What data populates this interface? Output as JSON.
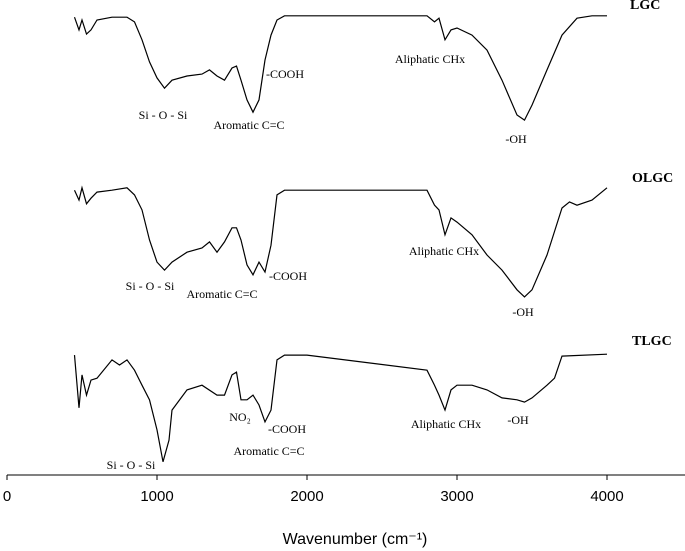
{
  "chart_data": {
    "type": "line",
    "x_label": "Wavenumber (cm⁻¹)",
    "xlim": [
      0,
      4500
    ],
    "xticks": [
      0,
      1000,
      2000,
      3000,
      4000
    ],
    "ylim": [
      0,
      100
    ],
    "series": [
      {
        "name": "LGC",
        "color": "#000000",
        "x": [
          450,
          480,
          500,
          530,
          560,
          600,
          700,
          800,
          850,
          900,
          950,
          1000,
          1050,
          1100,
          1200,
          1300,
          1350,
          1400,
          1450,
          1500,
          1530,
          1560,
          1600,
          1640,
          1680,
          1720,
          1760,
          1800,
          1850,
          2000,
          2800,
          2850,
          2880,
          2920,
          2960,
          3000,
          3100,
          3200,
          3300,
          3400,
          3450,
          3500,
          3600,
          3700,
          3800,
          3900,
          4000
        ],
        "values": [
          97.4,
          94.7,
          96.8,
          93.8,
          94.7,
          96.8,
          97.4,
          97.4,
          96.4,
          92.6,
          87.9,
          84.5,
          82.3,
          84.0,
          84.9,
          85.3,
          86.2,
          84.9,
          84.0,
          86.6,
          87.0,
          84.0,
          79.8,
          77.2,
          79.8,
          88.3,
          93.6,
          96.8,
          97.7,
          97.7,
          97.7,
          96.4,
          97.2,
          92.6,
          94.7,
          95.1,
          93.6,
          90.4,
          84.0,
          76.6,
          75.5,
          78.7,
          86.2,
          93.6,
          97.2,
          97.7,
          97.7
        ],
        "annotations": [
          "Si - O - Si",
          "Aromatic C=C",
          "-COOH",
          "Aliphatic CHx",
          "-OH"
        ]
      },
      {
        "name": "OLGC",
        "color": "#000000",
        "x": [
          450,
          480,
          500,
          530,
          560,
          600,
          700,
          800,
          850,
          900,
          950,
          1000,
          1050,
          1100,
          1200,
          1300,
          1350,
          1400,
          1450,
          1500,
          1530,
          1560,
          1600,
          1640,
          1680,
          1720,
          1760,
          1800,
          1850,
          2000,
          2800,
          2850,
          2880,
          2920,
          2960,
          3000,
          3100,
          3200,
          3300,
          3400,
          3450,
          3500,
          3600,
          3700,
          3750,
          3800,
          3900,
          4000
        ],
        "values": [
          60.6,
          58.5,
          61.1,
          57.7,
          58.9,
          60.2,
          60.6,
          61.1,
          59.6,
          56.4,
          50.0,
          45.3,
          43.6,
          45.3,
          47.4,
          48.3,
          49.6,
          47.4,
          49.6,
          52.6,
          52.6,
          50.0,
          44.7,
          42.6,
          45.3,
          43.2,
          48.9,
          59.6,
          60.6,
          60.6,
          60.6,
          57.4,
          56.4,
          51.1,
          54.7,
          53.8,
          51.1,
          46.8,
          43.6,
          39.4,
          37.9,
          39.4,
          46.8,
          56.8,
          58.1,
          57.4,
          58.5,
          61.1
        ],
        "annotations": [
          "Si - O - Si",
          "Aromatic C=C",
          "-COOH",
          "Aliphatic CHx",
          "-OH"
        ]
      },
      {
        "name": "TLGC",
        "color": "#000000",
        "x": [
          450,
          480,
          500,
          530,
          560,
          600,
          700,
          750,
          800,
          850,
          900,
          950,
          1000,
          1040,
          1080,
          1100,
          1200,
          1300,
          1400,
          1450,
          1500,
          1530,
          1560,
          1600,
          1640,
          1680,
          1720,
          1760,
          1800,
          1850,
          2000,
          2800,
          2850,
          2880,
          2920,
          2960,
          3000,
          3100,
          3200,
          3300,
          3400,
          3450,
          3500,
          3600,
          3650,
          3700,
          4000
        ],
        "values": [
          25.5,
          14.3,
          21.3,
          17.0,
          20.2,
          20.6,
          24.5,
          23.4,
          24.5,
          22.3,
          19.1,
          16.0,
          9.6,
          2.8,
          7.4,
          13.8,
          18.1,
          19.1,
          17.0,
          17.0,
          21.3,
          21.9,
          16.0,
          16.0,
          17.0,
          14.9,
          11.3,
          13.8,
          24.5,
          25.5,
          25.5,
          22.3,
          19.1,
          17.0,
          13.8,
          18.1,
          19.1,
          19.1,
          18.1,
          16.4,
          16.0,
          15.5,
          16.4,
          19.1,
          20.6,
          25.3,
          25.7
        ],
        "annotations": [
          "Si - O - Si",
          "NO₂",
          "-COOH",
          "Aromatic C=C",
          "Aliphatic CHx",
          "-OH"
        ]
      }
    ]
  }
}
